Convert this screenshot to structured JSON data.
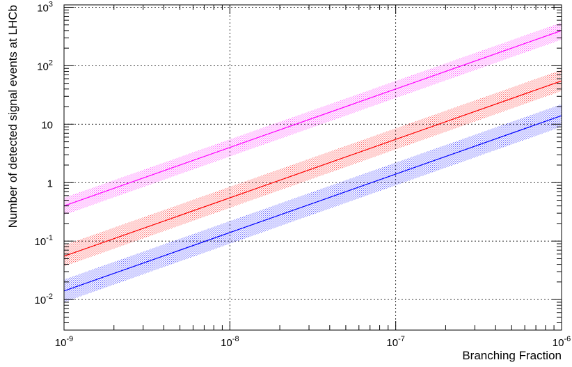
{
  "chart_data": {
    "type": "line",
    "title": "",
    "xlabel": "Branching Fraction",
    "ylabel": "Number of detected signal events at LHCb",
    "x_scale": "log",
    "y_scale": "log",
    "xlim": [
      1e-09,
      1e-06
    ],
    "ylim": [
      0.003,
      1100
    ],
    "grid": true,
    "legend": "none",
    "x_tick_labels": [
      {
        "value": 1e-09,
        "base": "10",
        "exp": "-9"
      },
      {
        "value": 1e-08,
        "base": "10",
        "exp": "-8"
      },
      {
        "value": 1e-07,
        "base": "10",
        "exp": "-7"
      },
      {
        "value": 1e-06,
        "base": "10",
        "exp": "-6"
      }
    ],
    "y_tick_labels": [
      {
        "value": 0.01,
        "base": "10",
        "exp": "-2"
      },
      {
        "value": 0.1,
        "base": "10",
        "exp": "-1"
      },
      {
        "value": 1,
        "base": "1",
        "exp": ""
      },
      {
        "value": 10,
        "base": "10",
        "exp": ""
      },
      {
        "value": 100,
        "base": "10",
        "exp": "2"
      },
      {
        "value": 1000,
        "base": "10",
        "exp": "3"
      }
    ],
    "series": [
      {
        "color": "#ff00ff",
        "x": [
          1e-09,
          1e-06
        ],
        "y": [
          0.4,
          400
        ],
        "band_low": [
          0.28,
          280
        ],
        "band_high": [
          0.55,
          550
        ]
      },
      {
        "color": "#ff0000",
        "x": [
          1e-09,
          1e-06
        ],
        "y": [
          0.055,
          55
        ],
        "band_low": [
          0.037,
          37
        ],
        "band_high": [
          0.085,
          85
        ]
      },
      {
        "color": "#0000ff",
        "x": [
          1e-09,
          1e-06
        ],
        "y": [
          0.014,
          14
        ],
        "band_low": [
          0.009,
          9
        ],
        "band_high": [
          0.022,
          22
        ]
      }
    ]
  }
}
